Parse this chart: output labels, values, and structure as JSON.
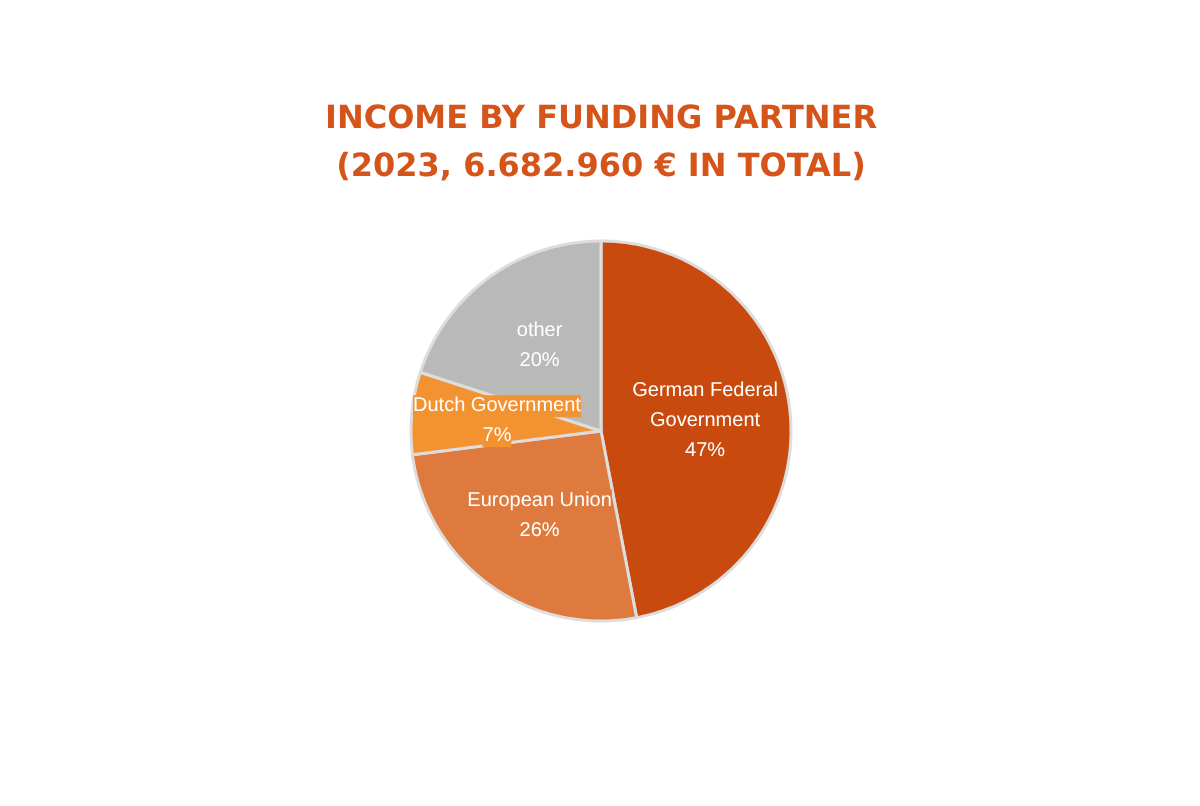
{
  "chart_data": {
    "type": "pie",
    "title": "INCOME BY FUNDING PARTNER\n(2023, 6.682.960 € IN TOTAL)",
    "categories": [
      "German Federal Government",
      "European Union",
      "Dutch Government",
      "other"
    ],
    "values": [
      47,
      26,
      7,
      20
    ],
    "value_labels": [
      "47%",
      "26%",
      "7%",
      "20%"
    ],
    "colors": [
      "#c94a0e",
      "#df7a3e",
      "#f39230",
      "#b9b9b9"
    ]
  }
}
